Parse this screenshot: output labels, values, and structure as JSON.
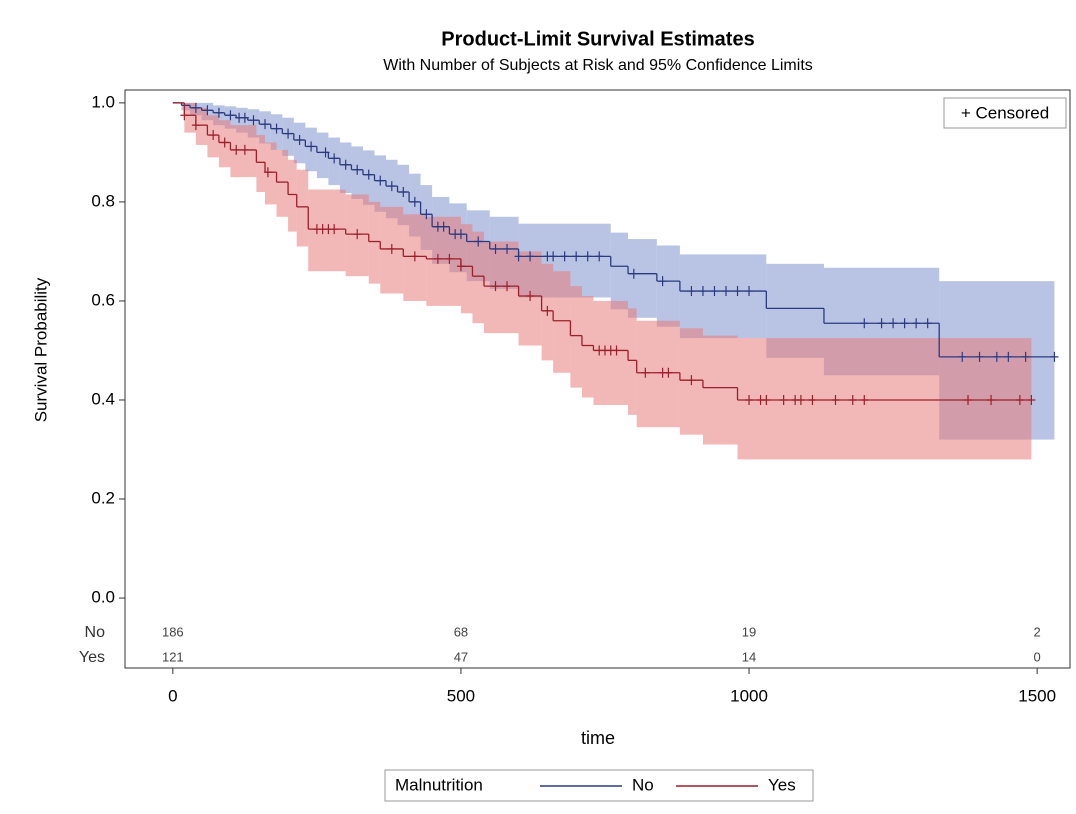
{
  "chart_data": {
    "type": "survival",
    "title": "Product-Limit Survival Estimates",
    "subtitle": "With Number of Subjects at Risk and 95% Confidence Limits",
    "xlabel": "time",
    "ylabel": "Survival Probability",
    "censored_label": "+ Censored",
    "legend_title": "Malnutrition",
    "xlim": [
      -83,
      1557
    ],
    "ylim": [
      -0.01,
      1.026
    ],
    "xticks": [
      0,
      500,
      1000,
      1500
    ],
    "yticks": [
      {
        "value": 0,
        "label": "0.0"
      },
      0.2,
      0.4,
      0.6,
      0.8,
      {
        "value": 1,
        "label": "1.0"
      }
    ],
    "at_risk_x": [
      0,
      500,
      1000,
      1500
    ],
    "series": [
      {
        "name": "No",
        "color": "#2b3a80",
        "band_color": "#7f93d0",
        "x": [
          0,
          15,
          30,
          50,
          70,
          90,
          110,
          130,
          150,
          170,
          190,
          210,
          230,
          250,
          270,
          290,
          310,
          330,
          350,
          370,
          390,
          410,
          430,
          450,
          480,
          510,
          550,
          600,
          760,
          790,
          840,
          880,
          1030,
          1130,
          1330
        ],
        "values": [
          1.0,
          0.995,
          0.99,
          0.985,
          0.98,
          0.975,
          0.97,
          0.965,
          0.957,
          0.948,
          0.938,
          0.925,
          0.912,
          0.9,
          0.888,
          0.875,
          0.865,
          0.855,
          0.843,
          0.832,
          0.82,
          0.8,
          0.775,
          0.75,
          0.735,
          0.72,
          0.705,
          0.69,
          0.67,
          0.655,
          0.64,
          0.62,
          0.585,
          0.555,
          0.487
        ],
        "upper": [
          1.0,
          1.0,
          1.0,
          1.0,
          0.995,
          0.993,
          0.99,
          0.987,
          0.983,
          0.977,
          0.97,
          0.96,
          0.95,
          0.94,
          0.93,
          0.92,
          0.912,
          0.904,
          0.894,
          0.885,
          0.875,
          0.857,
          0.834,
          0.81,
          0.797,
          0.783,
          0.77,
          0.756,
          0.738,
          0.725,
          0.712,
          0.694,
          0.675,
          0.667,
          0.64
        ],
        "lower": [
          1.0,
          0.985,
          0.975,
          0.965,
          0.955,
          0.948,
          0.94,
          0.93,
          0.918,
          0.905,
          0.893,
          0.878,
          0.862,
          0.848,
          0.834,
          0.818,
          0.806,
          0.794,
          0.78,
          0.767,
          0.753,
          0.73,
          0.703,
          0.675,
          0.658,
          0.64,
          0.624,
          0.607,
          0.583,
          0.566,
          0.548,
          0.525,
          0.485,
          0.45,
          0.32
        ],
        "x_end": 1530,
        "censored": [
          40,
          60,
          80,
          100,
          115,
          125,
          140,
          160,
          180,
          200,
          220,
          240,
          265,
          280,
          300,
          320,
          340,
          360,
          380,
          400,
          420,
          440,
          460,
          470,
          490,
          500,
          530,
          560,
          580,
          600,
          620,
          650,
          660,
          680,
          700,
          720,
          740,
          800,
          850,
          900,
          920,
          940,
          960,
          980,
          1000,
          1200,
          1230,
          1250,
          1270,
          1290,
          1310,
          1370,
          1400,
          1430,
          1450,
          1480,
          1530
        ],
        "at_risk": [
          186,
          68,
          19,
          2
        ]
      },
      {
        "name": "Yes",
        "color": "#9c1f2a",
        "band_color": "#e77b7b",
        "x": [
          0,
          20,
          40,
          60,
          80,
          100,
          145,
          160,
          180,
          200,
          215,
          235,
          300,
          340,
          360,
          400,
          440,
          500,
          520,
          540,
          600,
          640,
          660,
          690,
          710,
          730,
          790,
          805,
          880,
          920,
          980
        ],
        "values": [
          1.0,
          0.975,
          0.955,
          0.935,
          0.92,
          0.905,
          0.88,
          0.86,
          0.84,
          0.815,
          0.79,
          0.745,
          0.735,
          0.72,
          0.705,
          0.69,
          0.685,
          0.67,
          0.65,
          0.63,
          0.61,
          0.58,
          0.56,
          0.53,
          0.51,
          0.5,
          0.48,
          0.455,
          0.44,
          0.425,
          0.4
        ],
        "upper": [
          1.0,
          1.0,
          0.99,
          0.975,
          0.965,
          0.955,
          0.935,
          0.92,
          0.905,
          0.885,
          0.865,
          0.825,
          0.815,
          0.8,
          0.79,
          0.775,
          0.77,
          0.755,
          0.74,
          0.72,
          0.7,
          0.675,
          0.66,
          0.63,
          0.61,
          0.6,
          0.585,
          0.56,
          0.545,
          0.53,
          0.525
        ],
        "lower": [
          1.0,
          0.94,
          0.915,
          0.89,
          0.87,
          0.85,
          0.82,
          0.795,
          0.77,
          0.74,
          0.71,
          0.66,
          0.65,
          0.635,
          0.615,
          0.6,
          0.59,
          0.575,
          0.555,
          0.535,
          0.51,
          0.48,
          0.455,
          0.425,
          0.405,
          0.39,
          0.37,
          0.345,
          0.33,
          0.31,
          0.28
        ],
        "x_end": 1490,
        "censored": [
          20,
          40,
          70,
          90,
          110,
          125,
          165,
          250,
          260,
          270,
          280,
          320,
          380,
          420,
          460,
          480,
          500,
          560,
          580,
          620,
          650,
          740,
          750,
          760,
          770,
          820,
          850,
          860,
          900,
          1000,
          1020,
          1030,
          1060,
          1080,
          1090,
          1110,
          1150,
          1180,
          1200,
          1380,
          1420,
          1470,
          1490
        ],
        "at_risk": [
          121,
          47,
          14,
          0
        ]
      }
    ]
  }
}
